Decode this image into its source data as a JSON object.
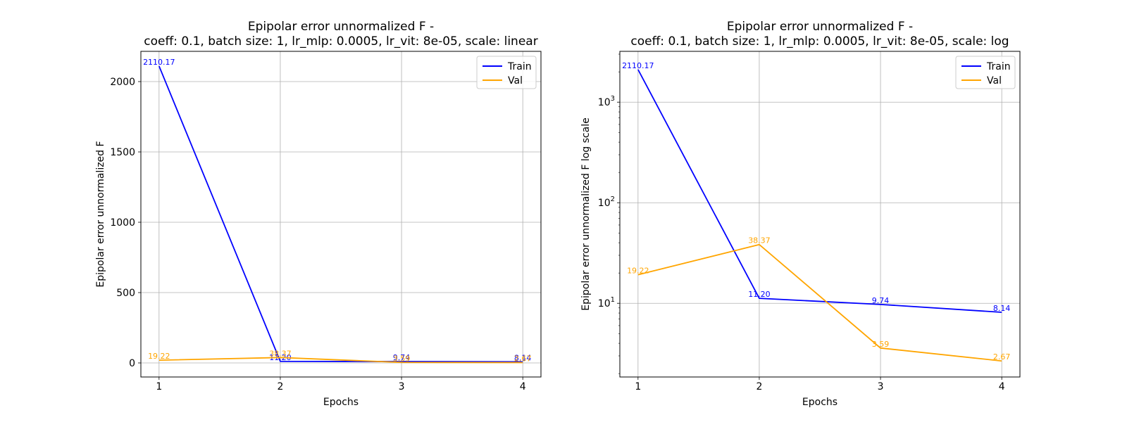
{
  "chart_data": [
    {
      "type": "line",
      "title_line1": "Epipolar error unnormalized F -",
      "title_line2": "coeff: 0.1, batch size: 1, lr_mlp: 0.0005, lr_vit: 8e-05, scale: linear",
      "xlabel": "Epochs",
      "ylabel": "Epipolar error unnormalized F",
      "yscale": "linear",
      "x": [
        1,
        2,
        3,
        4
      ],
      "xticks": [
        1,
        2,
        3,
        4
      ],
      "xlim": [
        0.85,
        4.15
      ],
      "ylim": [
        -100,
        2215
      ],
      "yticks": [
        0,
        500,
        1000,
        1500,
        2000
      ],
      "grid": true,
      "legend_position": "top-right",
      "series": [
        {
          "name": "Train",
          "color": "#0000ff",
          "values": [
            2110.17,
            11.2,
            9.74,
            8.14
          ],
          "labels": [
            "2110.17",
            "11.20",
            "9.74",
            "8.14"
          ]
        },
        {
          "name": "Val",
          "color": "#ffa500",
          "values": [
            19.22,
            38.37,
            3.59,
            2.67
          ],
          "labels": [
            "19.22",
            "38.37",
            "3.59",
            "2.67"
          ]
        }
      ]
    },
    {
      "type": "line",
      "title_line1": "Epipolar error unnormalized F -",
      "title_line2": "coeff: 0.1, batch size: 1, lr_mlp: 0.0005, lr_vit: 8e-05, scale: log",
      "xlabel": "Epochs",
      "ylabel": "Epipolar error unnormalized F log scale",
      "yscale": "log",
      "x": [
        1,
        2,
        3,
        4
      ],
      "xticks": [
        1,
        2,
        3,
        4
      ],
      "xlim": [
        0.85,
        4.15
      ],
      "ylim": [
        1.85,
        3200
      ],
      "yticks": [
        10,
        100,
        1000
      ],
      "grid": true,
      "legend_position": "top-right",
      "series": [
        {
          "name": "Train",
          "color": "#0000ff",
          "values": [
            2110.17,
            11.2,
            9.74,
            8.14
          ],
          "labels": [
            "2110.17",
            "11.20",
            "9.74",
            "8.14"
          ]
        },
        {
          "name": "Val",
          "color": "#ffa500",
          "values": [
            19.22,
            38.37,
            3.59,
            2.67
          ],
          "labels": [
            "19.22",
            "38.37",
            "3.59",
            "2.67"
          ]
        }
      ]
    }
  ]
}
